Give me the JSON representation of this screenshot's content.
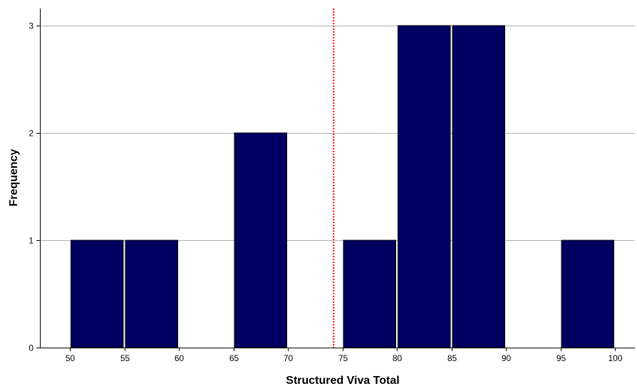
{
  "chart_data": {
    "type": "bar",
    "subtype": "histogram",
    "title": "",
    "xlabel": "Structured Viva Total",
    "ylabel": "Frequency",
    "xlim": [
      47.5,
      102
    ],
    "ylim": [
      0,
      3.35
    ],
    "x_ticks": [
      50,
      55,
      60,
      65,
      70,
      75,
      80,
      85,
      90,
      95,
      100
    ],
    "x_tick_labels": [
      "50",
      "55",
      "60",
      "65",
      "70",
      "75",
      "80",
      "85",
      "90",
      "95",
      "100"
    ],
    "y_ticks": [
      0,
      1,
      2,
      3
    ],
    "y_tick_labels": [
      "0",
      "1",
      "2",
      "3"
    ],
    "bins": [
      {
        "start": 50,
        "end": 55,
        "count": 1
      },
      {
        "start": 55,
        "end": 60,
        "count": 1
      },
      {
        "start": 60,
        "end": 65,
        "count": 0
      },
      {
        "start": 65,
        "end": 70,
        "count": 2
      },
      {
        "start": 70,
        "end": 75,
        "count": 0
      },
      {
        "start": 75,
        "end": 80,
        "count": 1
      },
      {
        "start": 80,
        "end": 85,
        "count": 3
      },
      {
        "start": 85,
        "end": 90,
        "count": 3
      },
      {
        "start": 90,
        "end": 95,
        "count": 0
      },
      {
        "start": 95,
        "end": 100,
        "count": 1
      }
    ],
    "reference_line": {
      "x": 74.2,
      "style": "dotted",
      "color": "#ff0000"
    },
    "grid": {
      "horizontal": true,
      "vertical": false
    },
    "legend": "none",
    "colors": {
      "bar_fill": "#000060",
      "bar_stroke": "#000000",
      "grid": "#b0b0b0",
      "axis": "#000000"
    }
  }
}
